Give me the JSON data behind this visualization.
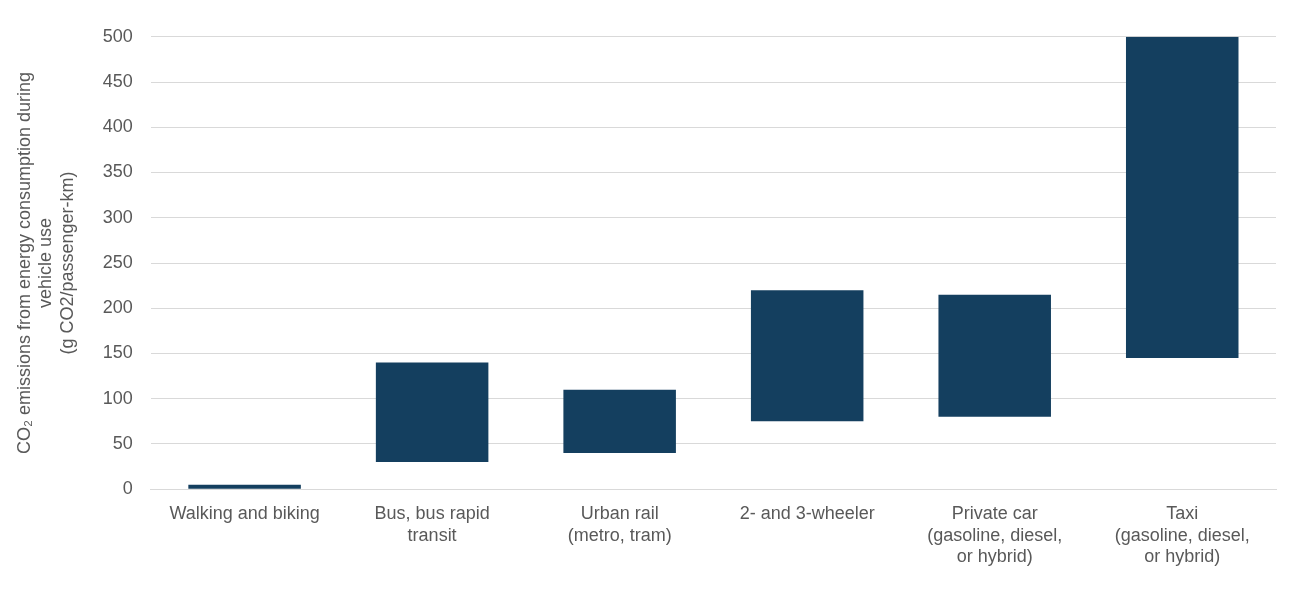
{
  "chart_data": {
    "type": "bar",
    "ylabel": "CO₂ emissions from energy consumption during vehicle use (g CO2/passenger-km)",
    "categories": [
      "Walking and biking",
      "Bus, bus rapid transit",
      "Urban rail (metro, tram)",
      "2- and 3-wheeler",
      "Private car (gasoline, diesel, or hybrid)",
      "Taxi (gasoline, diesel, or hybrid)"
    ],
    "values": [
      5,
      110,
      70,
      145,
      135,
      355
    ],
    "base": [
      0,
      30,
      40,
      75,
      80,
      145
    ],
    "color": "#143f5f",
    "ylim": [
      0,
      500
    ],
    "yticks": [
      0,
      50,
      100,
      150,
      200,
      250,
      300,
      350,
      400,
      450,
      500
    ],
    "grid": "y"
  }
}
